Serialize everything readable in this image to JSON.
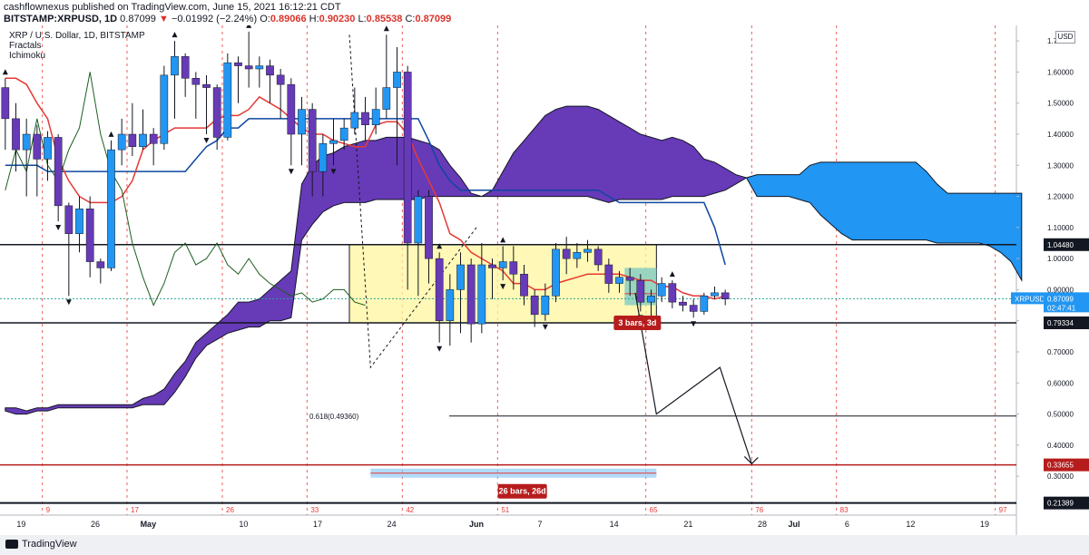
{
  "header": {
    "published": "cashflownexus published on TradingView.com, June 15, 2021 16:12:21 CDT",
    "symbol": "BITSTAMP:XRPUSD, 1D",
    "last": "0.87099",
    "change": "−0.01992 (−2.24%)",
    "ohlc": {
      "o": "0.89066",
      "h": "0.90230",
      "l": "0.85538",
      "c": "0.87099"
    }
  },
  "legend": {
    "title": "XRP / U.S. Dollar, 1D, BITSTAMP",
    "indicators": [
      "Fractals",
      "Ichimoku"
    ]
  },
  "footer": {
    "brand": "TradingView"
  },
  "price_axis": {
    "currency": "USD",
    "ticks": [
      "1.70000",
      "1.60000",
      "1.50000",
      "1.40000",
      "1.30000",
      "1.20000",
      "1.10000",
      "1.00000",
      "0.90000",
      "0.80000",
      "0.70000",
      "0.60000",
      "0.50000",
      "0.40000",
      "0.30000"
    ],
    "tick_values": [
      1.7,
      1.6,
      1.5,
      1.4,
      1.3,
      1.2,
      1.1,
      1.0,
      0.9,
      0.8,
      0.7,
      0.6,
      0.5,
      0.4,
      0.3
    ],
    "labels": [
      {
        "text": "1.04480",
        "value": 1.0448,
        "style": "black"
      },
      {
        "text": "0.79334",
        "value": 0.79334,
        "style": "black"
      },
      {
        "text": "0.50000",
        "value": 0.5,
        "style": "plain"
      },
      {
        "text": "0.33655",
        "value": 0.33655,
        "style": "darkred"
      },
      {
        "text": "0.21389",
        "value": 0.21389,
        "style": "black"
      }
    ],
    "current": {
      "symbol": "XRPUSD",
      "price": "0.87099",
      "countdown": "02:47:41",
      "value": 0.87099
    }
  },
  "chart_data": {
    "type": "candlestick",
    "y_range": [
      0.175,
      1.75
    ],
    "x_axis": {
      "start": "2021-04-17",
      "end": "2021-07-22",
      "tick_dates": [
        "2021-04-19",
        "2021-04-26",
        "2021-05-01",
        "2021-05-10",
        "2021-05-17",
        "2021-05-24",
        "2021-06-01",
        "2021-06-07",
        "2021-06-14",
        "2021-06-21",
        "2021-06-28",
        "2021-07-01",
        "2021-07-06",
        "2021-07-12",
        "2021-07-19"
      ],
      "tick_labels": [
        "19",
        "26",
        "May",
        "10",
        "17",
        "24",
        "Jun",
        "7",
        "14",
        "21",
        "28",
        "Jul",
        "6",
        "12",
        "19"
      ]
    },
    "session_markers": [
      {
        "date": "2021-04-21",
        "label": "9"
      },
      {
        "date": "2021-04-29",
        "label": "17"
      },
      {
        "date": "2021-05-08",
        "label": "26"
      },
      {
        "date": "2021-05-16",
        "label": "33"
      },
      {
        "date": "2021-05-25",
        "label": "42"
      },
      {
        "date": "2021-06-03",
        "label": "51"
      },
      {
        "date": "2021-06-17",
        "label": "65"
      },
      {
        "date": "2021-06-27",
        "label": "76"
      },
      {
        "date": "2021-07-05",
        "label": "83"
      },
      {
        "date": "2021-07-20",
        "label": "97"
      }
    ],
    "candles": [
      [
        1.55,
        1.45,
        1.58,
        1.35
      ],
      [
        1.45,
        1.35,
        1.5,
        1.28
      ],
      [
        1.35,
        1.4,
        1.45,
        1.2
      ],
      [
        1.4,
        1.32,
        1.43,
        1.2
      ],
      [
        1.32,
        1.39,
        1.41,
        1.25
      ],
      [
        1.39,
        1.17,
        1.4,
        1.12
      ],
      [
        1.17,
        1.08,
        1.18,
        0.88
      ],
      [
        1.08,
        1.16,
        1.2,
        1.02
      ],
      [
        1.16,
        0.99,
        1.2,
        0.94
      ],
      [
        0.99,
        0.97,
        1.0,
        0.92
      ],
      [
        0.97,
        1.35,
        1.38,
        0.96
      ],
      [
        1.35,
        1.4,
        1.45,
        1.3
      ],
      [
        1.4,
        1.36,
        1.5,
        1.33
      ],
      [
        1.36,
        1.4,
        1.48,
        1.35
      ],
      [
        1.4,
        1.37,
        1.42,
        1.3
      ],
      [
        1.37,
        1.59,
        1.62,
        1.35
      ],
      [
        1.59,
        1.65,
        1.7,
        1.45
      ],
      [
        1.65,
        1.58,
        1.66,
        1.52
      ],
      [
        1.58,
        1.56,
        1.6,
        1.45
      ],
      [
        1.56,
        1.55,
        1.59,
        1.4
      ],
      [
        1.55,
        1.39,
        1.56,
        1.35
      ],
      [
        1.39,
        1.63,
        1.66,
        1.38
      ],
      [
        1.63,
        1.62,
        1.65,
        1.5
      ],
      [
        1.62,
        1.61,
        1.73,
        1.55
      ],
      [
        1.61,
        1.62,
        1.65,
        1.55
      ],
      [
        1.62,
        1.59,
        1.64,
        1.5
      ],
      [
        1.59,
        1.56,
        1.61,
        1.45
      ],
      [
        1.56,
        1.4,
        1.58,
        1.3
      ],
      [
        1.4,
        1.48,
        1.52,
        1.3
      ],
      [
        1.48,
        1.28,
        1.5,
        1.2
      ],
      [
        1.28,
        1.37,
        1.4,
        1.2
      ],
      [
        1.37,
        1.38,
        1.45,
        1.3
      ],
      [
        1.38,
        1.42,
        1.45,
        1.35
      ],
      [
        1.42,
        1.47,
        1.55,
        1.4
      ],
      [
        1.47,
        1.43,
        1.52,
        1.38
      ],
      [
        1.43,
        1.48,
        1.55,
        1.4
      ],
      [
        1.48,
        1.55,
        1.72,
        1.45
      ],
      [
        1.55,
        1.6,
        1.68,
        1.3
      ],
      [
        1.6,
        1.05,
        1.62,
        0.9
      ],
      [
        1.05,
        1.2,
        1.22,
        0.88
      ],
      [
        1.2,
        1.0,
        1.22,
        0.92
      ],
      [
        1.0,
        0.8,
        1.02,
        0.73
      ],
      [
        0.8,
        0.9,
        0.95,
        0.72
      ],
      [
        0.9,
        0.98,
        1.02,
        0.76
      ],
      [
        0.98,
        0.79,
        1.0,
        0.73
      ],
      [
        0.79,
        0.98,
        1.05,
        0.76
      ],
      [
        0.98,
        0.97,
        1.0,
        0.87
      ],
      [
        0.97,
        0.99,
        1.04,
        0.93
      ],
      [
        0.99,
        0.95,
        1.04,
        0.9
      ],
      [
        0.95,
        0.88,
        0.98,
        0.85
      ],
      [
        0.88,
        0.82,
        0.9,
        0.78
      ],
      [
        0.82,
        0.88,
        0.92,
        0.8
      ],
      [
        0.88,
        1.03,
        1.05,
        0.86
      ],
      [
        1.03,
        1.0,
        1.07,
        0.95
      ],
      [
        1.0,
        1.02,
        1.05,
        0.97
      ],
      [
        1.02,
        1.03,
        1.06,
        0.99
      ],
      [
        1.03,
        0.98,
        1.04,
        0.96
      ],
      [
        0.98,
        0.92,
        1.0,
        0.89
      ],
      [
        0.92,
        0.94,
        0.96,
        0.89
      ],
      [
        0.94,
        0.93,
        0.97,
        0.88
      ],
      [
        0.93,
        0.86,
        0.95,
        0.83
      ],
      [
        0.86,
        0.88,
        0.9,
        0.78
      ],
      [
        0.88,
        0.92,
        0.94,
        0.86
      ],
      [
        0.92,
        0.86,
        0.93,
        0.84
      ],
      [
        0.86,
        0.85,
        0.88,
        0.83
      ],
      [
        0.85,
        0.83,
        0.87,
        0.81
      ],
      [
        0.83,
        0.88,
        0.89,
        0.82
      ],
      [
        0.88,
        0.89,
        0.91,
        0.87
      ],
      [
        0.89,
        0.87,
        0.9,
        0.85
      ]
    ],
    "ichimoku": {
      "tenkan": [
        1.58,
        1.58,
        1.56,
        1.5,
        1.45,
        1.32,
        1.25,
        1.2,
        1.18,
        1.18,
        1.18,
        1.2,
        1.25,
        1.35,
        1.38,
        1.4,
        1.42,
        1.42,
        1.42,
        1.42,
        1.45,
        1.46,
        1.46,
        1.48,
        1.52,
        1.5,
        1.48,
        1.45,
        1.42,
        1.4,
        1.4,
        1.38,
        1.37,
        1.36,
        1.36,
        1.43,
        1.44,
        1.44,
        1.4,
        1.32,
        1.25,
        1.18,
        1.08,
        1.06,
        1.02,
        1.0,
        0.98,
        0.96,
        0.92,
        0.92,
        0.9,
        0.9,
        0.92,
        0.93,
        0.94,
        0.95,
        0.95,
        0.95,
        0.95,
        0.94,
        0.93,
        0.93,
        0.91,
        0.91,
        0.89,
        0.88,
        0.88,
        0.87,
        0.88
      ],
      "kijun": [
        1.3,
        1.3,
        1.3,
        1.3,
        1.28,
        1.28,
        1.28,
        1.28,
        1.28,
        1.28,
        1.28,
        1.28,
        1.28,
        1.28,
        1.28,
        1.28,
        1.28,
        1.28,
        1.32,
        1.36,
        1.38,
        1.42,
        1.42,
        1.45,
        1.45,
        1.45,
        1.45,
        1.45,
        1.45,
        1.45,
        1.45,
        1.45,
        1.45,
        1.45,
        1.45,
        1.45,
        1.45,
        1.45,
        1.45,
        1.45,
        1.38,
        1.3,
        1.25,
        1.22,
        1.22,
        1.22,
        1.22,
        1.22,
        1.22,
        1.22,
        1.22,
        1.22,
        1.22,
        1.22,
        1.22,
        1.22,
        1.22,
        1.2,
        1.18,
        1.18,
        1.18,
        1.18,
        1.18,
        1.18,
        1.18,
        1.18,
        1.18,
        1.1,
        0.98
      ],
      "chikou": [
        1.22,
        1.35,
        1.28,
        1.45,
        1.3,
        1.25,
        1.35,
        1.42,
        1.6,
        1.4,
        1.28,
        1.22,
        1.05,
        0.94,
        0.85,
        0.92,
        1.02,
        1.05,
        0.98,
        1.0,
        1.05,
        0.98,
        0.95,
        1.0,
        0.95,
        0.92,
        0.9,
        0.88,
        0.89,
        0.86,
        0.87,
        0.9,
        0.9,
        0.86,
        0.85
      ],
      "cloud": [
        [
          0.51,
          0.52
        ],
        [
          0.5,
          0.52
        ],
        [
          0.5,
          0.51
        ],
        [
          0.51,
          0.52
        ],
        [
          0.51,
          0.52
        ],
        [
          0.52,
          0.53
        ],
        [
          0.52,
          0.53
        ],
        [
          0.52,
          0.53
        ],
        [
          0.52,
          0.53
        ],
        [
          0.52,
          0.53
        ],
        [
          0.52,
          0.53
        ],
        [
          0.52,
          0.53
        ],
        [
          0.52,
          0.53
        ],
        [
          0.53,
          0.55
        ],
        [
          0.53,
          0.56
        ],
        [
          0.53,
          0.58
        ],
        [
          0.57,
          0.63
        ],
        [
          0.62,
          0.67
        ],
        [
          0.68,
          0.73
        ],
        [
          0.72,
          0.76
        ],
        [
          0.74,
          0.79
        ],
        [
          0.76,
          0.82
        ],
        [
          0.77,
          0.86
        ],
        [
          0.78,
          0.86
        ],
        [
          0.78,
          0.87
        ],
        [
          0.8,
          0.9
        ],
        [
          0.8,
          0.93
        ],
        [
          0.81,
          0.96
        ],
        [
          1.06,
          1.24
        ],
        [
          1.11,
          1.3
        ],
        [
          1.15,
          1.33
        ],
        [
          1.17,
          1.34
        ],
        [
          1.18,
          1.36
        ],
        [
          1.18,
          1.37
        ],
        [
          1.18,
          1.38
        ],
        [
          1.19,
          1.38
        ],
        [
          1.19,
          1.39
        ],
        [
          1.19,
          1.39
        ],
        [
          1.19,
          1.39
        ],
        [
          1.19,
          1.38
        ],
        [
          1.2,
          1.37
        ],
        [
          1.2,
          1.35
        ],
        [
          1.2,
          1.3
        ],
        [
          1.2,
          1.26
        ],
        [
          1.2,
          1.21
        ],
        [
          1.2,
          1.2
        ],
        [
          1.2,
          1.22
        ],
        [
          1.2,
          1.28
        ],
        [
          1.2,
          1.34
        ],
        [
          1.2,
          1.38
        ],
        [
          1.2,
          1.42
        ],
        [
          1.2,
          1.46
        ],
        [
          1.2,
          1.48
        ],
        [
          1.2,
          1.49
        ],
        [
          1.2,
          1.49
        ],
        [
          1.2,
          1.49
        ],
        [
          1.19,
          1.48
        ],
        [
          1.18,
          1.46
        ],
        [
          1.19,
          1.44
        ],
        [
          1.19,
          1.42
        ],
        [
          1.19,
          1.4
        ],
        [
          1.19,
          1.39
        ],
        [
          1.19,
          1.38
        ],
        [
          1.2,
          1.39
        ],
        [
          1.2,
          1.38
        ],
        [
          1.2,
          1.36
        ],
        [
          1.2,
          1.32
        ],
        [
          1.21,
          1.31
        ],
        [
          1.22,
          1.29
        ],
        [
          1.24,
          1.27
        ],
        [
          1.26,
          1.26
        ],
        [
          1.2,
          1.27
        ],
        [
          1.2,
          1.27
        ],
        [
          1.2,
          1.27
        ],
        [
          1.2,
          1.27
        ],
        [
          1.19,
          1.27
        ],
        [
          1.18,
          1.3
        ],
        [
          1.14,
          1.31
        ],
        [
          1.11,
          1.31
        ],
        [
          1.08,
          1.31
        ],
        [
          1.06,
          1.31
        ],
        [
          1.06,
          1.31
        ],
        [
          1.06,
          1.31
        ],
        [
          1.06,
          1.31
        ],
        [
          1.06,
          1.31
        ],
        [
          1.06,
          1.31
        ],
        [
          1.06,
          1.31
        ],
        [
          1.06,
          1.28
        ],
        [
          1.05,
          1.24
        ],
        [
          1.05,
          1.21
        ],
        [
          1.05,
          1.21
        ],
        [
          1.05,
          1.21
        ],
        [
          1.05,
          1.21
        ],
        [
          1.04,
          1.21
        ],
        [
          1.02,
          1.21
        ],
        [
          0.99,
          1.21
        ],
        [
          0.93,
          1.21
        ]
      ],
      "cloud_bull_start_index": 71
    },
    "fractals": {
      "up": [
        0,
        10,
        16,
        23,
        36,
        41,
        47,
        63
      ],
      "down": [
        5,
        6,
        19,
        27,
        31,
        41,
        47,
        51,
        60,
        65
      ]
    },
    "consolidation_box": {
      "start": "2021-05-20",
      "end": "2021-06-18",
      "top": 1.0448,
      "bottom": 0.79334
    },
    "projection_box": {
      "start": "2021-06-15",
      "end": "2021-06-18",
      "top": 0.97,
      "bottom": 0.85,
      "label": "3 bars, 3d"
    },
    "range_tool": {
      "start": "2021-05-22",
      "end": "2021-06-18",
      "value": 0.31,
      "label": "26 bars, 26d"
    },
    "fib": {
      "label": "0.618(0.49360)",
      "value": 0.4936
    },
    "projection_path": [
      [
        "2021-06-16",
        0.89
      ],
      [
        "2021-06-18",
        0.5
      ],
      [
        "2021-06-24",
        0.65
      ],
      [
        "2021-06-27",
        0.34
      ]
    ],
    "dashed_path": [
      [
        "2021-05-20",
        1.72
      ],
      [
        "2021-05-22",
        0.65
      ],
      [
        "2021-06-01",
        1.1
      ]
    ],
    "colors": {
      "up": "#2196f3",
      "down": "#673ab7",
      "tenkan": "#e53935",
      "kijun": "#0d47a1",
      "chikou": "#1b5e20",
      "cloud_bear": "#673ab7",
      "cloud_bull": "#2196f3",
      "box": "#fff59d"
    }
  }
}
